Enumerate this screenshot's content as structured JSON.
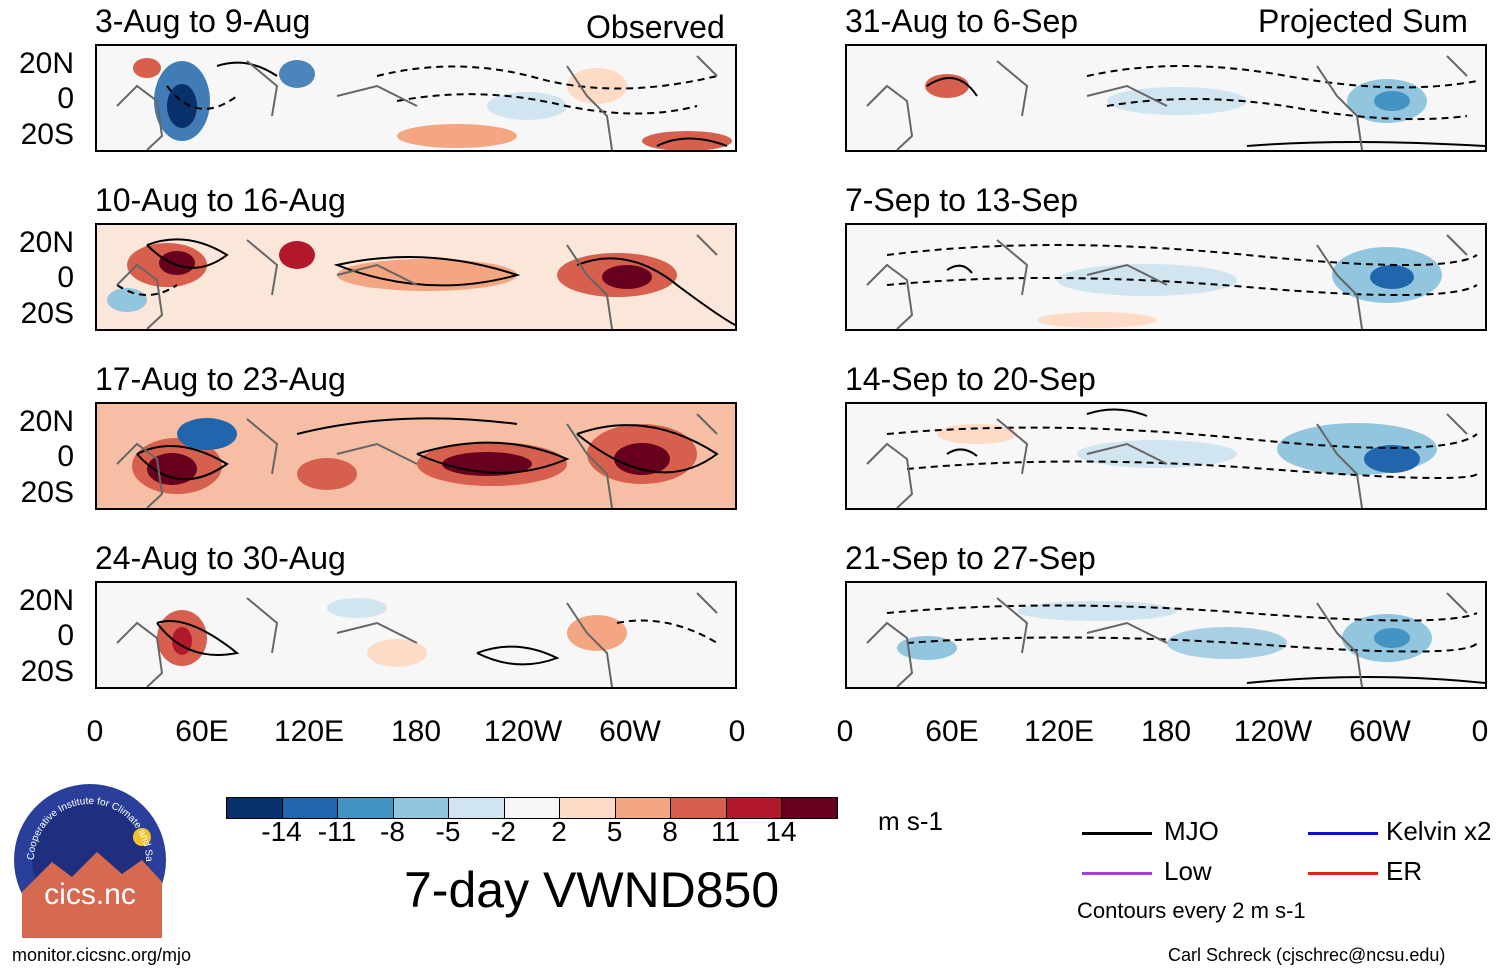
{
  "observed_label": "Observed",
  "projected_label": "Projected Sum",
  "left_panels": [
    {
      "title": "3-Aug to 9-Aug"
    },
    {
      "title": "10-Aug to 16-Aug"
    },
    {
      "title": "17-Aug to 23-Aug"
    },
    {
      "title": "24-Aug to 30-Aug"
    }
  ],
  "right_panels": [
    {
      "title": "31-Aug to 6-Sep"
    },
    {
      "title": "7-Sep to 13-Sep"
    },
    {
      "title": "14-Sep to 20-Sep"
    },
    {
      "title": "21-Sep to 27-Sep"
    }
  ],
  "lat_ticks": [
    "20N",
    "0",
    "20S"
  ],
  "lon_ticks": [
    "0",
    "60E",
    "120E",
    "180",
    "120W",
    "60W",
    "0"
  ],
  "colorbar": {
    "labels": [
      "-14",
      "-11",
      "-8",
      "-5",
      "-2",
      "2",
      "5",
      "8",
      "11",
      "14"
    ],
    "colors": [
      "#08306b",
      "#2166ac",
      "#4393c3",
      "#92c5de",
      "#d1e5f0",
      "#f7f7f7",
      "#fddbc7",
      "#f4a582",
      "#d6604d",
      "#b2182b",
      "#67001f"
    ],
    "units": "m s-1"
  },
  "main_title": "7-day VWND850",
  "legend": {
    "items": [
      {
        "label": "MJO",
        "color": "#000000"
      },
      {
        "label": "Kelvin x2",
        "color": "#1010cc"
      },
      {
        "label": "Low",
        "color": "#a040e0"
      },
      {
        "label": "ER",
        "color": "#e02010"
      }
    ],
    "contour_note": "Contours every 2 m s-1"
  },
  "logo_text": "cics.nc",
  "logo_ring_text": "Cooperative Institute for Climate and Satellites",
  "footer_left": "monitor.cicsnc.org/mjo",
  "footer_right": "Carl Schreck (cjschrec@ncsu.edu)"
}
